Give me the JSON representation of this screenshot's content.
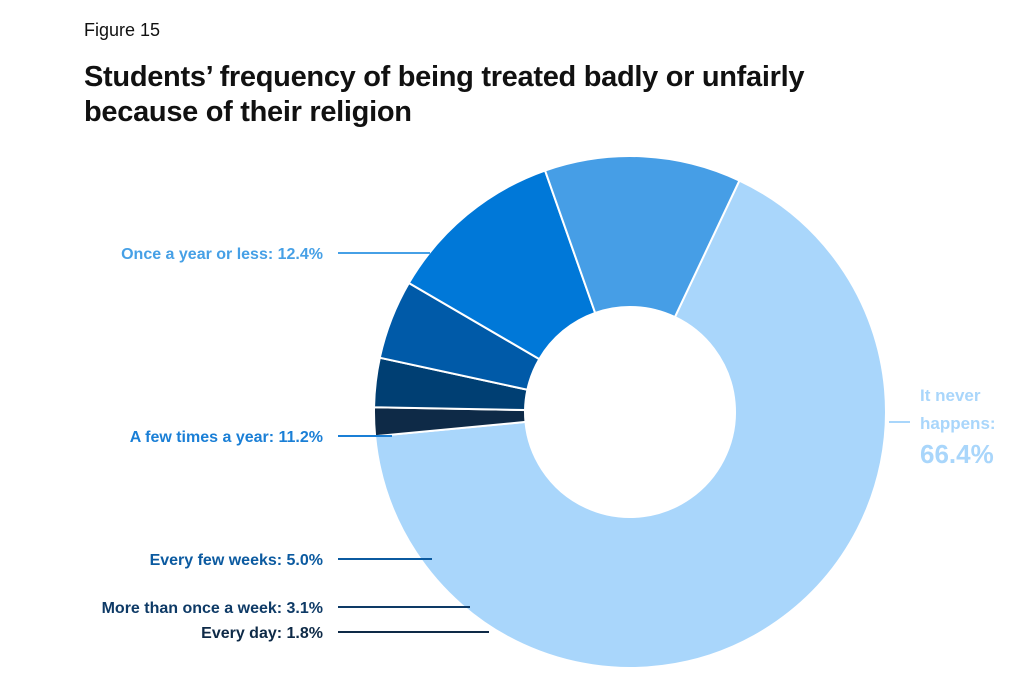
{
  "figure": {
    "label": "Figure 15"
  },
  "chart_data": {
    "type": "pie",
    "donut": true,
    "title": "Students’ frequency of being treated badly or unfairly because of their religion",
    "slices": [
      {
        "label": "It never happens:",
        "value": 66.4,
        "value_text": "66.4%",
        "color": "#a9d6fb",
        "label_color": "#a9d6fb"
      },
      {
        "label": "Every day:",
        "value": 1.8,
        "value_text": "1.8%",
        "color": "#0e2a47",
        "label_color": "#0e2a47"
      },
      {
        "label": "More than once a week:",
        "value": 3.1,
        "value_text": "3.1%",
        "color": "#003f73",
        "label_color": "#0e3a66"
      },
      {
        "label": "Every few weeks:",
        "value": 5.0,
        "value_text": "5.0%",
        "color": "#005aa8",
        "label_color": "#0b5aa0"
      },
      {
        "label": "A few times a year:",
        "value": 11.2,
        "value_text": "11.2%",
        "color": "#0078d8",
        "label_color": "#1a7fd6"
      },
      {
        "label": "Once a year or less:",
        "value": 12.4,
        "value_text": "12.4%",
        "color": "#469ee6",
        "label_color": "#46a0e6"
      }
    ]
  }
}
